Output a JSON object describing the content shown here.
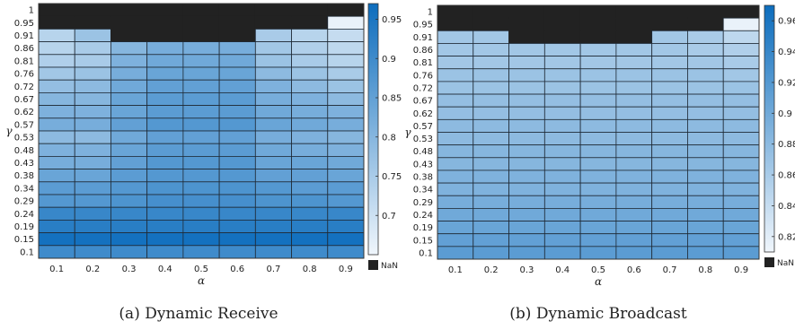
{
  "chart_data": [
    {
      "type": "heatmap",
      "caption": "(a) Dynamic Receive",
      "xlabel": "α",
      "ylabel": "γ",
      "x": [
        "0.1",
        "0.2",
        "0.3",
        "0.4",
        "0.5",
        "0.6",
        "0.7",
        "0.8",
        "0.9"
      ],
      "y": [
        "1",
        "0.95",
        "0.91",
        "0.86",
        "0.81",
        "0.76",
        "0.72",
        "0.67",
        "0.62",
        "0.57",
        "0.53",
        "0.48",
        "0.43",
        "0.38",
        "0.34",
        "0.29",
        "0.24",
        "0.19",
        "0.15",
        "0.1"
      ],
      "values": [
        [
          null,
          null,
          null,
          null,
          null,
          null,
          null,
          null,
          null
        ],
        [
          null,
          null,
          null,
          null,
          null,
          null,
          null,
          null,
          0.66
        ],
        [
          0.73,
          0.77,
          null,
          null,
          null,
          null,
          0.75,
          0.73,
          0.71
        ],
        [
          0.73,
          0.75,
          0.8,
          0.82,
          0.82,
          0.82,
          0.76,
          0.74,
          0.72
        ],
        [
          0.74,
          0.75,
          0.81,
          0.83,
          0.83,
          0.83,
          0.77,
          0.75,
          0.73
        ],
        [
          0.76,
          0.77,
          0.82,
          0.84,
          0.84,
          0.84,
          0.79,
          0.77,
          0.75
        ],
        [
          0.78,
          0.79,
          0.83,
          0.85,
          0.85,
          0.85,
          0.81,
          0.79,
          0.77
        ],
        [
          0.8,
          0.8,
          0.84,
          0.86,
          0.86,
          0.86,
          0.82,
          0.81,
          0.79
        ],
        [
          0.81,
          0.81,
          0.84,
          0.86,
          0.86,
          0.86,
          0.83,
          0.82,
          0.81
        ],
        [
          0.82,
          0.82,
          0.85,
          0.87,
          0.87,
          0.87,
          0.84,
          0.83,
          0.82
        ],
        [
          0.79,
          0.79,
          0.83,
          0.85,
          0.85,
          0.85,
          0.82,
          0.81,
          0.8
        ],
        [
          0.81,
          0.81,
          0.84,
          0.86,
          0.86,
          0.86,
          0.83,
          0.82,
          0.81
        ],
        [
          0.82,
          0.82,
          0.85,
          0.87,
          0.87,
          0.87,
          0.84,
          0.84,
          0.83
        ],
        [
          0.84,
          0.84,
          0.86,
          0.87,
          0.87,
          0.87,
          0.85,
          0.85,
          0.84
        ],
        [
          0.86,
          0.86,
          0.87,
          0.88,
          0.88,
          0.88,
          0.87,
          0.86,
          0.86
        ],
        [
          0.87,
          0.87,
          0.88,
          0.89,
          0.89,
          0.89,
          0.88,
          0.88,
          0.87
        ],
        [
          0.91,
          0.91,
          0.91,
          0.91,
          0.91,
          0.91,
          0.91,
          0.91,
          0.91
        ],
        [
          0.93,
          0.93,
          0.93,
          0.93,
          0.93,
          0.93,
          0.93,
          0.93,
          0.93
        ],
        [
          0.96,
          0.96,
          0.96,
          0.96,
          0.96,
          0.96,
          0.96,
          0.96,
          0.96
        ],
        [
          0.9,
          0.9,
          0.9,
          0.9,
          0.9,
          0.9,
          0.9,
          0.9,
          0.9
        ]
      ],
      "colorbar": {
        "min": 0.65,
        "max": 0.97,
        "ticks": [
          "0.7",
          "0.75",
          "0.8",
          "0.85",
          "0.9",
          "0.95"
        ],
        "nan_label": "NaN"
      },
      "colors": {
        "low": "#f0f6fc",
        "high": "#0d6dbd",
        "nan": "#222222"
      }
    },
    {
      "type": "heatmap",
      "caption": "(b) Dynamic Broadcast",
      "xlabel": "α",
      "ylabel": "γ",
      "x": [
        "0.1",
        "0.2",
        "0.3",
        "0.4",
        "0.5",
        "0.6",
        "0.7",
        "0.8",
        "0.9"
      ],
      "y": [
        "1",
        "0.95",
        "0.91",
        "0.86",
        "0.81",
        "0.76",
        "0.72",
        "0.67",
        "0.62",
        "0.57",
        "0.53",
        "0.48",
        "0.43",
        "0.38",
        "0.34",
        "0.29",
        "0.24",
        "0.19",
        "0.15",
        "0.1"
      ],
      "values": [
        [
          null,
          null,
          null,
          null,
          null,
          null,
          null,
          null,
          null
        ],
        [
          null,
          null,
          null,
          null,
          null,
          null,
          null,
          null,
          0.815
        ],
        [
          0.865,
          0.865,
          null,
          null,
          null,
          null,
          0.865,
          0.86,
          0.845
        ],
        [
          0.865,
          0.865,
          0.865,
          0.865,
          0.865,
          0.865,
          0.865,
          0.86,
          0.855
        ],
        [
          0.865,
          0.865,
          0.865,
          0.865,
          0.865,
          0.865,
          0.865,
          0.865,
          0.86
        ],
        [
          0.87,
          0.87,
          0.87,
          0.87,
          0.87,
          0.87,
          0.87,
          0.87,
          0.865
        ],
        [
          0.87,
          0.87,
          0.87,
          0.87,
          0.87,
          0.87,
          0.87,
          0.87,
          0.87
        ],
        [
          0.875,
          0.875,
          0.875,
          0.875,
          0.875,
          0.875,
          0.875,
          0.875,
          0.875
        ],
        [
          0.875,
          0.875,
          0.875,
          0.875,
          0.875,
          0.875,
          0.875,
          0.875,
          0.875
        ],
        [
          0.88,
          0.88,
          0.88,
          0.88,
          0.88,
          0.88,
          0.88,
          0.88,
          0.88
        ],
        [
          0.88,
          0.88,
          0.88,
          0.88,
          0.88,
          0.88,
          0.88,
          0.88,
          0.88
        ],
        [
          0.885,
          0.885,
          0.885,
          0.885,
          0.885,
          0.885,
          0.885,
          0.885,
          0.885
        ],
        [
          0.885,
          0.885,
          0.885,
          0.885,
          0.885,
          0.885,
          0.885,
          0.885,
          0.885
        ],
        [
          0.89,
          0.89,
          0.89,
          0.89,
          0.89,
          0.89,
          0.89,
          0.89,
          0.89
        ],
        [
          0.89,
          0.89,
          0.89,
          0.89,
          0.89,
          0.89,
          0.89,
          0.89,
          0.89
        ],
        [
          0.895,
          0.895,
          0.895,
          0.895,
          0.895,
          0.895,
          0.895,
          0.895,
          0.895
        ],
        [
          0.9,
          0.9,
          0.9,
          0.9,
          0.9,
          0.9,
          0.9,
          0.9,
          0.9
        ],
        [
          0.905,
          0.905,
          0.905,
          0.905,
          0.905,
          0.905,
          0.905,
          0.905,
          0.905
        ],
        [
          0.91,
          0.91,
          0.91,
          0.91,
          0.91,
          0.91,
          0.91,
          0.91,
          0.91
        ],
        [
          0.915,
          0.915,
          0.915,
          0.915,
          0.915,
          0.915,
          0.915,
          0.915,
          0.915
        ]
      ],
      "colorbar": {
        "min": 0.81,
        "max": 0.97,
        "ticks": [
          "0.82",
          "0.84",
          "0.86",
          "0.88",
          "0.9",
          "0.92",
          "0.94",
          "0.96"
        ],
        "nan_label": "NaN"
      },
      "colors": {
        "low": "#f0f6fc",
        "high": "#0d6dbd",
        "nan": "#222222"
      }
    }
  ]
}
